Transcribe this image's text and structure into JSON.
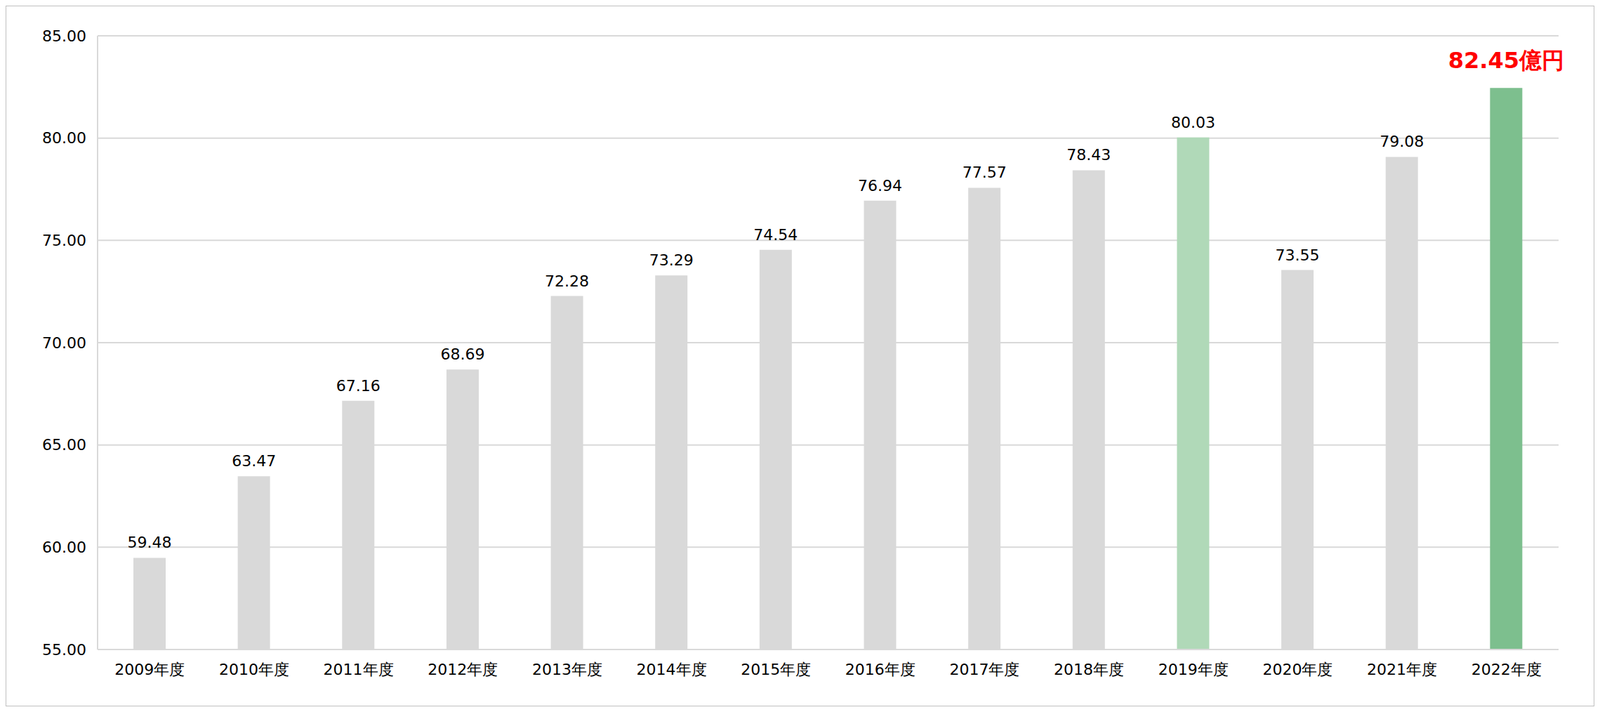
{
  "chart_data": {
    "type": "bar",
    "categories": [
      "2009年度",
      "2010年度",
      "2011年度",
      "2012年度",
      "2013年度",
      "2014年度",
      "2015年度",
      "2016年度",
      "2017年度",
      "2018年度",
      "2019年度",
      "2020年度",
      "2021年度",
      "2022年度"
    ],
    "values": [
      59.48,
      63.47,
      67.16,
      68.69,
      72.28,
      73.29,
      74.54,
      76.94,
      77.57,
      78.43,
      80.03,
      73.55,
      79.08,
      82.45
    ],
    "value_labels": [
      "59.48",
      "63.47",
      "67.16",
      "68.69",
      "72.28",
      "73.29",
      "74.54",
      "76.94",
      "77.57",
      "78.43",
      "80.03",
      "73.55",
      "79.08",
      "82.45億円"
    ],
    "colors": [
      "#d9d9d9",
      "#d9d9d9",
      "#d9d9d9",
      "#d9d9d9",
      "#d9d9d9",
      "#d9d9d9",
      "#d9d9d9",
      "#d9d9d9",
      "#d9d9d9",
      "#d9d9d9",
      "#b0d9b8",
      "#d9d9d9",
      "#d9d9d9",
      "#7dbf8e"
    ],
    "ylim": [
      55,
      85
    ],
    "yticks": [
      {
        "value": 55,
        "label": "55.00"
      },
      {
        "value": 60,
        "label": "60.00"
      },
      {
        "value": 65,
        "label": "65.00"
      },
      {
        "value": 70,
        "label": "70.00"
      },
      {
        "value": 75,
        "label": "75.00"
      },
      {
        "value": 80,
        "label": "80.00"
      },
      {
        "value": 85,
        "label": "85.00"
      }
    ],
    "grid": true,
    "data_labels": true
  }
}
